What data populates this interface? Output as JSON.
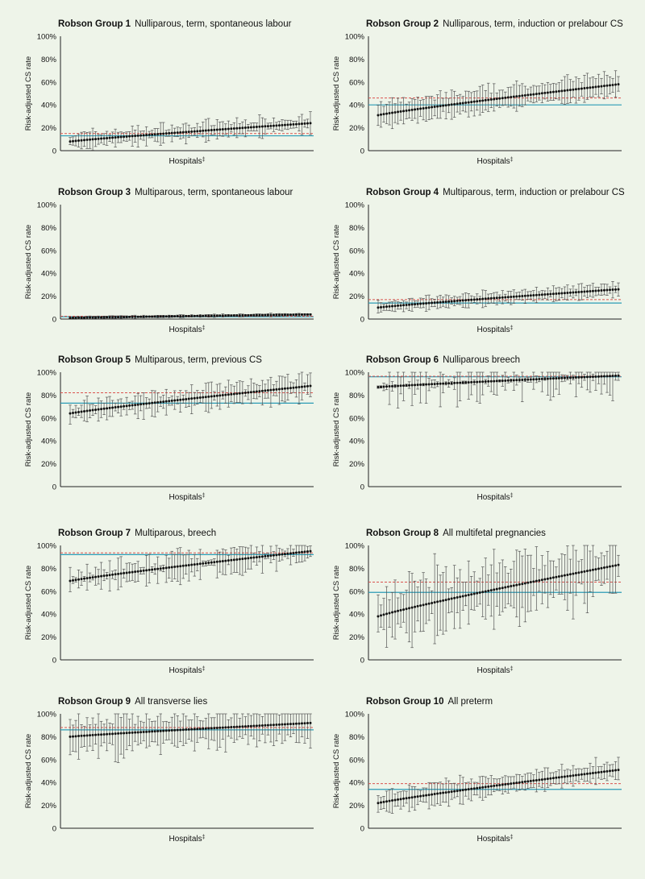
{
  "figure": {
    "y_axis_label": "Risk-adjusted CS rate",
    "x_axis_label": "Hospitals",
    "x_axis_marker": "‡",
    "y_ticks": [
      "0",
      "20%",
      "40%",
      "60%",
      "80%",
      "100%"
    ],
    "colors": {
      "background": "#eef4e9",
      "point": "#111111",
      "error_bar": "#555555",
      "state_rate_line": "#2b9bb5",
      "reference_line": "#d9534f"
    }
  },
  "chart_data": [
    {
      "type": "scatter",
      "group": "Robson Group 1",
      "description": "Nulliparous, term, spontaneous labour",
      "ylim": [
        0,
        100
      ],
      "n_hospitals": 86,
      "estimate_range": [
        8,
        24
      ],
      "ci_width": [
        3,
        10
      ],
      "state_rate": 13,
      "reference_rate": 15
    },
    {
      "type": "scatter",
      "group": "Robson Group 2",
      "description": "Nulliparous, term, induction or prelabour CS",
      "ylim": [
        0,
        100
      ],
      "n_hospitals": 86,
      "estimate_range": [
        31,
        58
      ],
      "ci_width": [
        6,
        13
      ],
      "state_rate": 40,
      "reference_rate": 46
    },
    {
      "type": "scatter",
      "group": "Robson Group 3",
      "description": "Multiparous, term, spontaneous labour",
      "ylim": [
        0,
        100
      ],
      "n_hospitals": 86,
      "estimate_range": [
        1,
        4
      ],
      "ci_width": [
        0.5,
        1.5
      ],
      "state_rate": 2,
      "reference_rate": 2.5
    },
    {
      "type": "scatter",
      "group": "Robson Group 4",
      "description": "Multiparous, term, induction or prelabour CS",
      "ylim": [
        0,
        100
      ],
      "n_hospitals": 86,
      "estimate_range": [
        10,
        26
      ],
      "ci_width": [
        3,
        7
      ],
      "state_rate": 14,
      "reference_rate": 17
    },
    {
      "type": "scatter",
      "group": "Robson Group 5",
      "description": "Multiparous, term, previous CS",
      "ylim": [
        0,
        100
      ],
      "n_hospitals": 86,
      "estimate_range": [
        64,
        88
      ],
      "ci_width": [
        3,
        14
      ],
      "state_rate": 73,
      "reference_rate": 82
    },
    {
      "type": "scatter",
      "group": "Robson Group 6",
      "description": "Nulliparous breech",
      "ylim": [
        0,
        100
      ],
      "n_hospitals": 86,
      "estimate_range": [
        87,
        97
      ],
      "ci_width": [
        1,
        20
      ],
      "state_rate": 96,
      "reference_rate": 96.5
    },
    {
      "type": "scatter",
      "group": "Robson Group 7",
      "description": "Multiparous, breech",
      "ylim": [
        0,
        100
      ],
      "n_hospitals": 86,
      "estimate_range": [
        69,
        95
      ],
      "ci_width": [
        2,
        15
      ],
      "state_rate": 92,
      "reference_rate": 93.5
    },
    {
      "type": "scatter",
      "group": "Robson Group 8",
      "description": "All multifetal pregnancies",
      "ylim": [
        0,
        100
      ],
      "n_hospitals": 86,
      "estimate_range": [
        38,
        83
      ],
      "ci_width": [
        10,
        37
      ],
      "state_rate": 59,
      "reference_rate": 68
    },
    {
      "type": "scatter",
      "group": "Robson Group 9",
      "description": "All transverse lies",
      "ylim": [
        0,
        100
      ],
      "n_hospitals": 86,
      "estimate_range": [
        80,
        92
      ],
      "ci_width": [
        8,
        22
      ],
      "state_rate": 86,
      "reference_rate": 88
    },
    {
      "type": "scatter",
      "group": "Robson Group 10",
      "description": "All preterm",
      "ylim": [
        0,
        100
      ],
      "n_hospitals": 86,
      "estimate_range": [
        22,
        51
      ],
      "ci_width": [
        5,
        12
      ],
      "state_rate": 34,
      "reference_rate": 39
    }
  ]
}
